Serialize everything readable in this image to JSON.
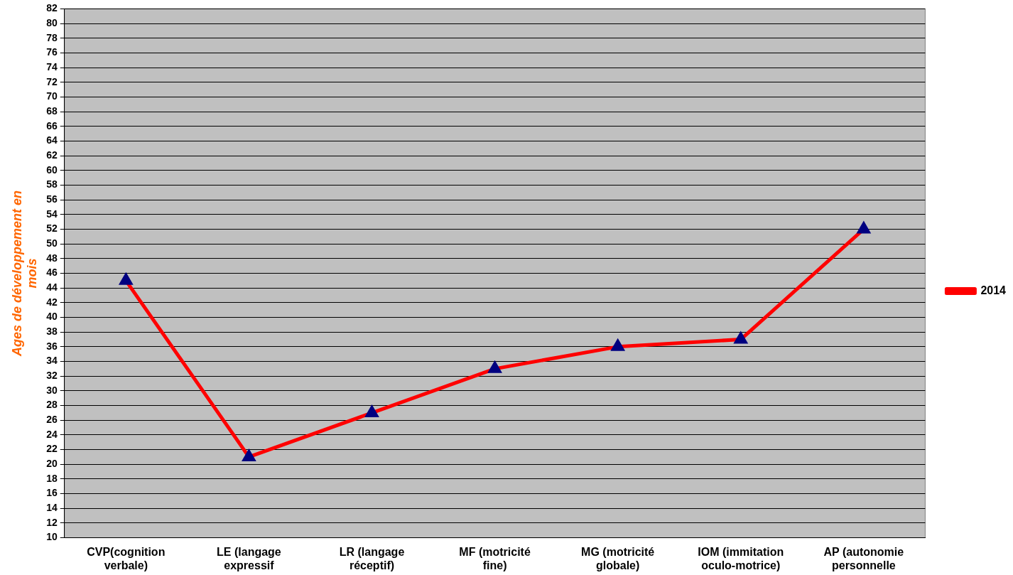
{
  "chart_data": {
    "type": "line",
    "ylabel": "Ages de développement en mois",
    "categories": [
      "CVP(cognition verbale)",
      "LE (langage expressif",
      "LR (langage réceptif)",
      "MF (motricité fine)",
      "MG (motricité globale)",
      "IOM (immitation oculo-motrice)",
      "AP (autonomie personnelle"
    ],
    "series": [
      {
        "name": "2014",
        "color": "#ff0000",
        "values": [
          45,
          21,
          27,
          33,
          36,
          37,
          52
        ]
      }
    ],
    "ylim": [
      10,
      82
    ],
    "yticks": [
      10,
      12,
      14,
      16,
      18,
      20,
      22,
      24,
      26,
      28,
      30,
      32,
      34,
      36,
      38,
      40,
      42,
      44,
      46,
      48,
      50,
      52,
      54,
      56,
      58,
      60,
      62,
      64,
      66,
      68,
      70,
      72,
      74,
      76,
      78,
      80,
      82
    ],
    "grid": "y",
    "legend": "right",
    "marker": "triangle",
    "line_style": "solid"
  }
}
